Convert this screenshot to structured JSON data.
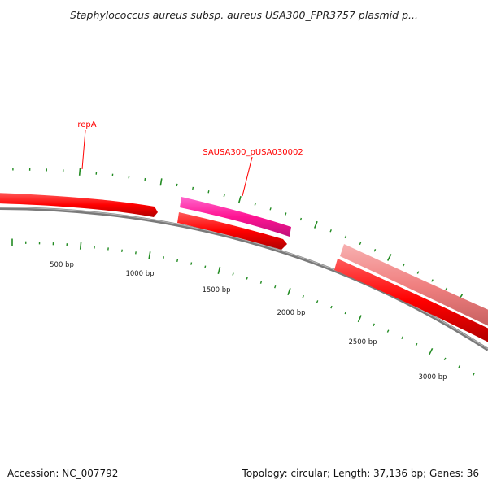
{
  "title": "Staphylococcus aureus subsp. aureus USA300_FPR3757 plasmid p...",
  "footer": {
    "accession": "Accession: NC_007792",
    "summary": "Topology: circular; Length: 37,136 bp; Genes: 36"
  },
  "scale_labels": [
    "500 bp",
    "1000 bp",
    "1500 bp",
    "2000 bp",
    "2500 bp",
    "3000 bp"
  ],
  "gene_labels": [
    "repA",
    "SAUSA300_pUSA030002"
  ],
  "colors": {
    "backbone": "#808080",
    "forward_gene": "#ff0000",
    "reverse_gene": "#ff0000",
    "highlight_gene": "#ff1493",
    "pink_gene": "#f08080",
    "ticks": "#228b22",
    "label_text": "#ff0000"
  }
}
